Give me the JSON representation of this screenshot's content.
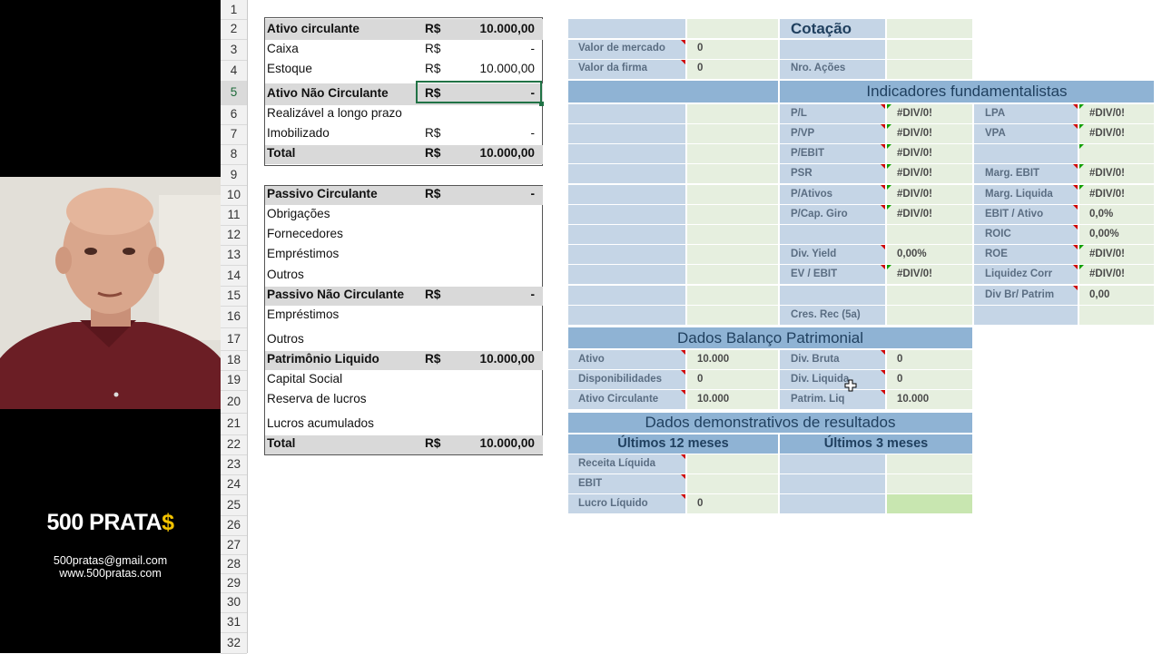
{
  "brand": {
    "title_main": "500 PRATA",
    "title_dollar": "$",
    "email": "500pratas@gmail.com",
    "site": "www.500pratas.com"
  },
  "colors": {
    "blue": "#c5d5e6",
    "green": "#e6efdf",
    "head": "#8fb3d4",
    "gray": "#d9d9d9",
    "bright_green": "#c8e6b0"
  },
  "row_numbers": [
    "1",
    "2",
    "3",
    "4",
    "5",
    "6",
    "7",
    "8",
    "9",
    "10",
    "11",
    "12",
    "13",
    "14",
    "15",
    "16",
    "17",
    "18",
    "19",
    "20",
    "21",
    "22",
    "23",
    "24",
    "25",
    "26",
    "27",
    "28",
    "29",
    "30",
    "31",
    "32"
  ],
  "balance_sheet": {
    "ativo_circulante": {
      "label": "Ativo circulante",
      "cur": "R$",
      "val": "10.000,00"
    },
    "caixa": {
      "label": "Caixa",
      "cur": "R$",
      "val": "-"
    },
    "estoque": {
      "label": "Estoque",
      "cur": "R$",
      "val": "10.000,00"
    },
    "ativo_nao_circulante": {
      "label": "Ativo Não Circulante",
      "cur": "R$",
      "val": "-"
    },
    "realizavel": {
      "label": "Realizável a longo prazo"
    },
    "imobilizado": {
      "label": "Imobilizado",
      "cur": "R$",
      "val": "-"
    },
    "total_ativo": {
      "label": "Total",
      "cur": "R$",
      "val": "10.000,00"
    },
    "passivo_circulante": {
      "label": "Passivo Circulante",
      "cur": "R$",
      "val": "-"
    },
    "obrigacoes": {
      "label": "Obrigações"
    },
    "fornecedores": {
      "label": "Fornecedores"
    },
    "emprestimos1": {
      "label": "Empréstimos"
    },
    "outros1": {
      "label": "Outros"
    },
    "passivo_nao_circulante": {
      "label": "Passivo Não Circulante",
      "cur": "R$",
      "val": "-"
    },
    "emprestimos2": {
      "label": "Empréstimos"
    },
    "outros2": {
      "label": "Outros"
    },
    "patrimonio": {
      "label": "Patrimônio Liquido",
      "cur": "R$",
      "val": "10.000,00"
    },
    "capital": {
      "label": "Capital Social"
    },
    "reserva": {
      "label": "Reserva de lucros"
    },
    "lucros": {
      "label": "Lucros acumulados"
    },
    "total_passivo": {
      "label": "Total",
      "cur": "R$",
      "val": "10.000,00"
    }
  },
  "fundamentus": {
    "cotacao": "Cotação",
    "valor_mercado": {
      "label": "Valor de mercado",
      "val": "0"
    },
    "valor_firma": {
      "label": "Valor da firma",
      "val": "0"
    },
    "nro_acoes": {
      "label": "Nro. Ações"
    },
    "indicadores_title": "Indicadores fundamentalistas",
    "indicadores_left": [
      {
        "label": "P/L",
        "val": "#DIV/0!"
      },
      {
        "label": "P/VP",
        "val": "#DIV/0!"
      },
      {
        "label": "P/EBIT",
        "val": "#DIV/0!"
      },
      {
        "label": "PSR",
        "val": "#DIV/0!"
      },
      {
        "label": "P/Ativos",
        "val": "#DIV/0!"
      },
      {
        "label": "P/Cap. Giro",
        "val": "#DIV/0!"
      },
      {
        "label": "",
        "val": ""
      },
      {
        "label": "Div. Yield",
        "val": "0,00%"
      },
      {
        "label": "EV / EBIT",
        "val": "#DIV/0!"
      },
      {
        "label": "",
        "val": ""
      },
      {
        "label": "Cres. Rec (5a)",
        "val": ""
      }
    ],
    "indicadores_right": [
      {
        "label": "LPA",
        "val": "#DIV/0!"
      },
      {
        "label": "VPA",
        "val": "#DIV/0!"
      },
      {
        "label": "",
        "val": ""
      },
      {
        "label": "Marg. EBIT",
        "val": "#DIV/0!"
      },
      {
        "label": "Marg. Liquida",
        "val": "#DIV/0!"
      },
      {
        "label": "EBIT / Ativo",
        "val": "0,0%"
      },
      {
        "label": "ROIC",
        "val": "0,00%"
      },
      {
        "label": "ROE",
        "val": "#DIV/0!"
      },
      {
        "label": "Liquidez Corr",
        "val": "#DIV/0!"
      },
      {
        "label": "Div Br/ Patrim",
        "val": "0,00"
      }
    ],
    "balanco_title": "Dados Balanço Patrimonial",
    "balanco_left": [
      {
        "label": "Ativo",
        "val": "10.000"
      },
      {
        "label": "Disponibilidades",
        "val": "0"
      },
      {
        "label": "Ativo Circulante",
        "val": "10.000"
      }
    ],
    "balanco_right": [
      {
        "label": "Div. Bruta",
        "val": "0"
      },
      {
        "label": "Div. Liquida",
        "val": "0"
      },
      {
        "label": "Patrim. Liq",
        "val": "10.000"
      }
    ],
    "dre_title": "Dados demonstrativos de resultados",
    "dre_12m": "Últimos 12 meses",
    "dre_3m": "Últimos 3 meses",
    "dre_rows": [
      {
        "label": "Receita Líquida",
        "val": ""
      },
      {
        "label": "EBIT",
        "val": ""
      },
      {
        "label": "Lucro Líquido",
        "val": "0"
      }
    ]
  }
}
